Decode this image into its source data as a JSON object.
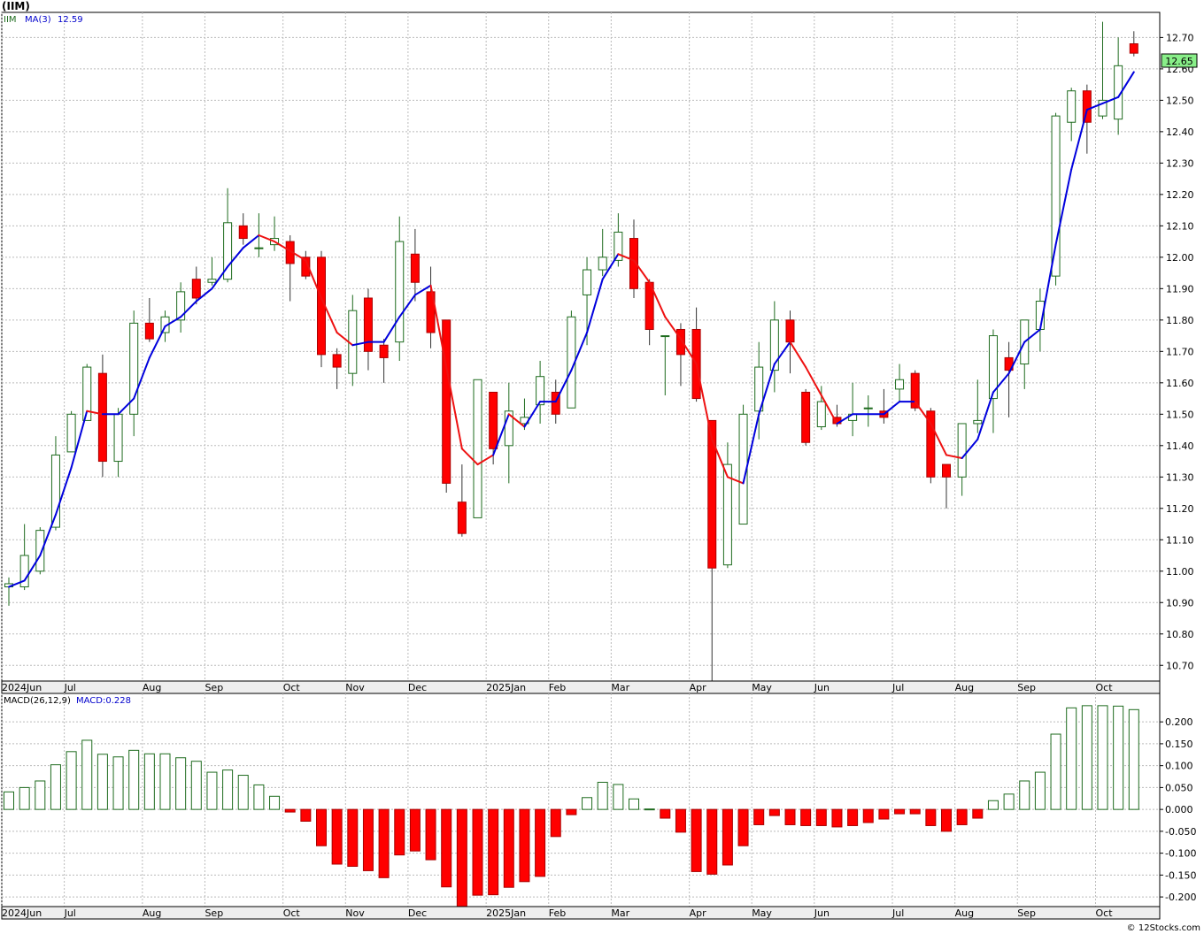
{
  "title": "(IIM)",
  "credit": "© 12Stocks.com",
  "colors": {
    "up": "#1e6b1e",
    "down": "#ff0000",
    "ma_up": "#0000dd",
    "ma_down": "#ee1111",
    "grid": "#bbbbbb",
    "badge": "#88ee88",
    "macd_pos": "#1e6b1e",
    "macd_neg": "#ff0000"
  },
  "chart_data": [
    {
      "type": "candlestick",
      "legend": {
        "symbol": "IIM",
        "ma_label": "MA(3)",
        "ma_value": "12.59"
      },
      "last_price": "12.65",
      "ylim": [
        10.65,
        12.78
      ],
      "y_ticks": [
        "10.70",
        "10.80",
        "10.90",
        "11.00",
        "11.10",
        "11.20",
        "11.30",
        "11.40",
        "11.50",
        "11.60",
        "11.70",
        "11.80",
        "11.90",
        "12.00",
        "12.10",
        "12.20",
        "12.30",
        "12.40",
        "12.50",
        "12.60",
        "12.70"
      ],
      "x_labels": [
        "2024Jun",
        "Jul",
        "Aug",
        "Sep",
        "Oct",
        "Nov",
        "Dec",
        "2025Jan",
        "Feb",
        "Mar",
        "Apr",
        "May",
        "Jun",
        "Jul",
        "Aug",
        "Sep",
        "Oct"
      ],
      "x_label_index": [
        0,
        4,
        9,
        13,
        18,
        22,
        26,
        31,
        35,
        39,
        44,
        48,
        52,
        57,
        61,
        65,
        70
      ],
      "ohlc": [
        [
          10.95,
          10.98,
          10.89,
          10.96
        ],
        [
          10.95,
          11.15,
          10.94,
          11.05
        ],
        [
          11.0,
          11.14,
          10.99,
          11.13
        ],
        [
          11.14,
          11.43,
          11.13,
          11.37
        ],
        [
          11.38,
          11.51,
          11.38,
          11.5
        ],
        [
          11.48,
          11.66,
          11.48,
          11.65
        ],
        [
          11.63,
          11.69,
          11.3,
          11.35
        ],
        [
          11.35,
          11.52,
          11.3,
          11.5
        ],
        [
          11.5,
          11.83,
          11.43,
          11.79
        ],
        [
          11.79,
          11.87,
          11.73,
          11.74
        ],
        [
          11.76,
          11.83,
          11.73,
          11.81
        ],
        [
          11.8,
          11.92,
          11.76,
          11.89
        ],
        [
          11.93,
          11.97,
          11.85,
          11.87
        ],
        [
          11.92,
          12.0,
          11.91,
          11.93
        ],
        [
          11.93,
          12.22,
          11.92,
          12.11
        ],
        [
          12.1,
          12.14,
          12.04,
          12.06
        ],
        [
          12.03,
          12.14,
          12.0,
          12.03
        ],
        [
          12.04,
          12.13,
          12.02,
          12.06
        ],
        [
          12.05,
          12.07,
          11.86,
          11.98
        ],
        [
          12.0,
          12.02,
          11.93,
          11.94
        ],
        [
          12.0,
          12.02,
          11.65,
          11.69
        ],
        [
          11.69,
          11.71,
          11.58,
          11.65
        ],
        [
          11.63,
          11.88,
          11.59,
          11.83
        ],
        [
          11.87,
          11.9,
          11.64,
          11.7
        ],
        [
          11.72,
          11.74,
          11.6,
          11.68
        ],
        [
          11.73,
          12.13,
          11.67,
          12.05
        ],
        [
          12.01,
          12.09,
          11.86,
          11.92
        ],
        [
          11.89,
          11.97,
          11.71,
          11.76
        ],
        [
          11.8,
          11.8,
          11.25,
          11.28
        ],
        [
          11.22,
          11.34,
          11.11,
          11.12
        ],
        [
          11.17,
          11.61,
          11.17,
          11.61
        ],
        [
          11.57,
          11.57,
          11.34,
          11.39
        ],
        [
          11.4,
          11.6,
          11.28,
          11.51
        ],
        [
          11.47,
          11.55,
          11.45,
          11.49
        ],
        [
          11.53,
          11.67,
          11.47,
          11.62
        ],
        [
          11.57,
          11.61,
          11.47,
          11.5
        ],
        [
          11.52,
          11.83,
          11.52,
          11.81
        ],
        [
          11.88,
          12.0,
          11.72,
          11.96
        ],
        [
          11.96,
          12.09,
          11.94,
          12.0
        ],
        [
          11.99,
          12.14,
          11.97,
          12.08
        ],
        [
          12.06,
          12.12,
          11.87,
          11.9
        ],
        [
          11.92,
          11.93,
          11.72,
          11.77
        ],
        [
          11.75,
          11.75,
          11.56,
          11.75
        ],
        [
          11.77,
          11.79,
          11.59,
          11.69
        ],
        [
          11.77,
          11.84,
          11.54,
          11.55
        ],
        [
          11.48,
          11.48,
          10.65,
          11.01
        ],
        [
          11.02,
          11.41,
          11.01,
          11.34
        ],
        [
          11.15,
          11.53,
          11.16,
          11.5
        ],
        [
          11.51,
          11.73,
          11.42,
          11.65
        ],
        [
          11.64,
          11.86,
          11.57,
          11.8
        ],
        [
          11.8,
          11.83,
          11.63,
          11.73
        ],
        [
          11.57,
          11.58,
          11.4,
          11.41
        ],
        [
          11.46,
          11.59,
          11.45,
          11.54
        ],
        [
          11.49,
          11.53,
          11.46,
          11.47
        ],
        [
          11.48,
          11.6,
          11.43,
          11.5
        ],
        [
          11.52,
          11.56,
          11.46,
          11.52
        ],
        [
          11.51,
          11.58,
          11.47,
          11.49
        ],
        [
          11.58,
          11.66,
          11.54,
          11.61
        ],
        [
          11.63,
          11.64,
          11.51,
          11.52
        ],
        [
          11.51,
          11.52,
          11.28,
          11.3
        ],
        [
          11.34,
          11.34,
          11.2,
          11.3
        ],
        [
          11.3,
          11.47,
          11.24,
          11.47
        ],
        [
          11.47,
          11.61,
          11.44,
          11.48
        ],
        [
          11.55,
          11.77,
          11.44,
          11.75
        ],
        [
          11.68,
          11.73,
          11.49,
          11.64
        ],
        [
          11.66,
          11.8,
          11.58,
          11.8
        ],
        [
          11.77,
          11.9,
          11.7,
          11.86
        ],
        [
          11.94,
          12.46,
          11.91,
          12.45
        ],
        [
          12.43,
          12.54,
          12.37,
          12.53
        ],
        [
          12.53,
          12.55,
          12.33,
          12.43
        ],
        [
          12.45,
          12.75,
          12.44,
          12.5
        ],
        [
          12.44,
          12.7,
          12.39,
          12.61
        ],
        [
          12.68,
          12.72,
          12.64,
          12.65
        ]
      ],
      "ma3": [
        10.95,
        10.97,
        11.05,
        11.18,
        11.33,
        11.51,
        11.5,
        11.5,
        11.55,
        11.68,
        11.78,
        11.81,
        11.86,
        11.9,
        11.97,
        12.03,
        12.07,
        12.05,
        12.02,
        11.99,
        11.87,
        11.76,
        11.72,
        11.73,
        11.73,
        11.81,
        11.88,
        11.91,
        11.65,
        11.39,
        11.34,
        11.37,
        11.5,
        11.46,
        11.54,
        11.54,
        11.64,
        11.76,
        11.93,
        12.01,
        11.99,
        11.92,
        11.81,
        11.74,
        11.66,
        11.42,
        11.3,
        11.28,
        11.5,
        11.66,
        11.73,
        11.65,
        11.56,
        11.47,
        11.5,
        11.5,
        11.5,
        11.54,
        11.54,
        11.47,
        11.37,
        11.36,
        11.42,
        11.57,
        11.63,
        11.73,
        11.77,
        12.04,
        12.28,
        12.47,
        12.49,
        12.51,
        12.59
      ],
      "ma_trend": [
        "u",
        "u",
        "u",
        "u",
        "u",
        "u",
        "d",
        "u",
        "u",
        "u",
        "u",
        "u",
        "u",
        "u",
        "u",
        "u",
        "u",
        "d",
        "d",
        "d",
        "d",
        "d",
        "d",
        "u",
        "u",
        "u",
        "u",
        "u",
        "d",
        "d",
        "d",
        "d",
        "u",
        "d",
        "u",
        "u",
        "u",
        "u",
        "u",
        "u",
        "d",
        "d",
        "d",
        "d",
        "d",
        "d",
        "d",
        "d",
        "u",
        "u",
        "u",
        "d",
        "d",
        "d",
        "u",
        "u",
        "u",
        "u",
        "u",
        "d",
        "d",
        "d",
        "u",
        "u",
        "u",
        "u",
        "u",
        "u",
        "u",
        "u",
        "u",
        "u",
        "u"
      ]
    },
    {
      "type": "bar",
      "legend": {
        "label": "MACD(26,12,9)",
        "value_label": "MACD:0.228"
      },
      "ylim": [
        -0.222,
        0.265
      ],
      "y_ticks": [
        "-0.200",
        "-0.150",
        "-0.100",
        "-0.050",
        "0.000",
        "0.050",
        "0.100",
        "0.150",
        "0.200"
      ],
      "x_labels": [
        "2024Jun",
        "Jul",
        "Aug",
        "Sep",
        "Oct",
        "Nov",
        "Dec",
        "2025Jan",
        "Feb",
        "Mar",
        "Apr",
        "May",
        "Jun",
        "Jul",
        "Aug",
        "Sep",
        "Oct"
      ],
      "x_label_index": [
        0,
        4,
        9,
        13,
        18,
        22,
        26,
        31,
        35,
        39,
        44,
        48,
        52,
        57,
        61,
        65,
        70
      ],
      "values": [
        0.04,
        0.05,
        0.065,
        0.102,
        0.132,
        0.158,
        0.126,
        0.12,
        0.135,
        0.127,
        0.127,
        0.118,
        0.11,
        0.085,
        0.09,
        0.078,
        0.056,
        0.03,
        -0.006,
        -0.027,
        -0.083,
        -0.125,
        -0.13,
        -0.14,
        -0.156,
        -0.104,
        -0.095,
        -0.115,
        -0.177,
        -0.227,
        -0.196,
        -0.195,
        -0.178,
        -0.165,
        -0.153,
        -0.062,
        -0.012,
        0.027,
        0.062,
        0.057,
        0.024,
        0.001,
        -0.02,
        -0.052,
        -0.142,
        -0.148,
        -0.127,
        -0.083,
        -0.035,
        -0.014,
        -0.035,
        -0.037,
        -0.037,
        -0.04,
        -0.037,
        -0.03,
        -0.022,
        -0.01,
        -0.01,
        -0.037,
        -0.05,
        -0.035,
        -0.02,
        0.02,
        0.035,
        0.065,
        0.085,
        0.172,
        0.232,
        0.237,
        0.237,
        0.236,
        0.228
      ]
    }
  ]
}
